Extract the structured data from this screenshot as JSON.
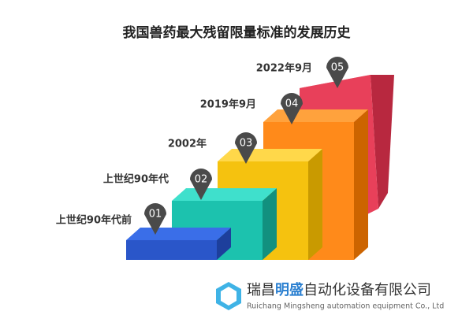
{
  "header": {
    "title": "我国兽药最大残留限量标准的发展历史"
  },
  "steps": [
    {
      "number": "01",
      "label": "上世纪90年代前"
    },
    {
      "number": "02",
      "label": "上世纪90年代"
    },
    {
      "number": "03",
      "label": "2002年"
    },
    {
      "number": "04",
      "label": "2019年9月"
    },
    {
      "number": "05",
      "label": "2022年9月"
    }
  ],
  "footer": {
    "company_prefix": "瑞昌",
    "company_highlight": "明盛",
    "company_suffix": "自动化设备有限公司",
    "english": "Ruichang Mingsheng automation equipment Co., Ltd"
  }
}
